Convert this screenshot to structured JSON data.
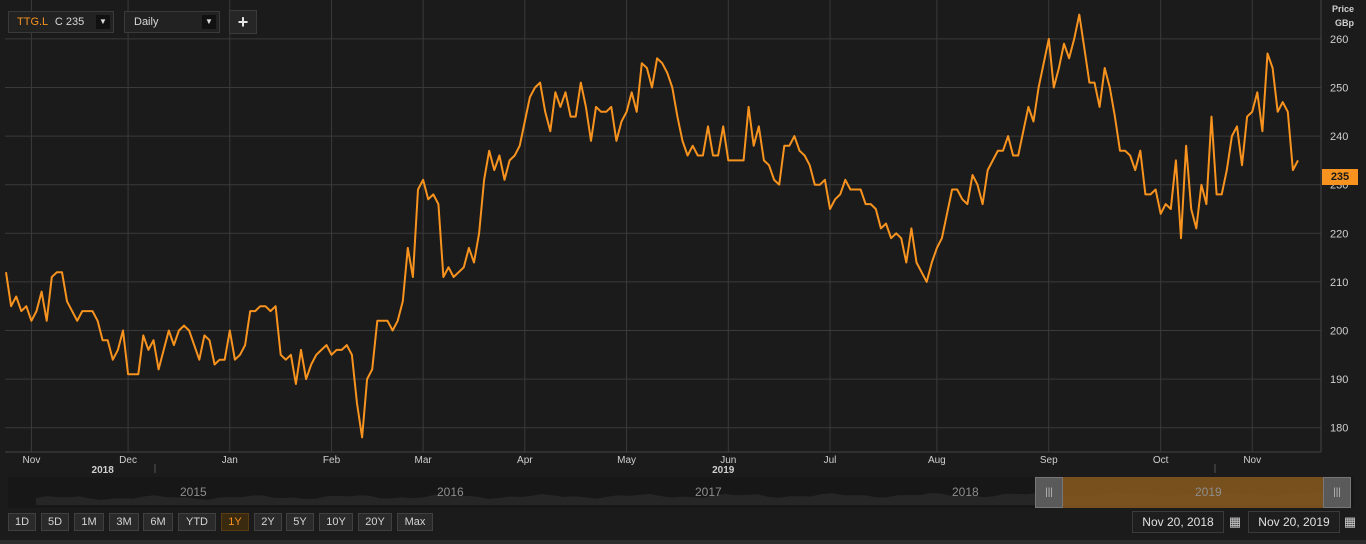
{
  "toolbar": {
    "symbol": "TTG.L",
    "close_value": "C 235",
    "frequency": "Daily",
    "add_symbol": "+"
  },
  "axis": {
    "unit_line1": "Price",
    "unit_line2": "GBp",
    "last_price": "235"
  },
  "navigator": {
    "years": [
      "2015",
      "2016",
      "2017",
      "2018",
      "2019"
    ]
  },
  "range_buttons": [
    "1D",
    "5D",
    "1M",
    "3M",
    "6M",
    "YTD",
    "1Y",
    "2Y",
    "5Y",
    "10Y",
    "20Y",
    "Max"
  ],
  "range_active": "1Y",
  "date_range": {
    "from": "Nov 20, 2018",
    "to": "Nov 20, 2019"
  },
  "colors": {
    "line": "#f7931e",
    "background": "#1b1b1b",
    "grid": "#3a3a3a"
  },
  "icons": {
    "dropdown": "triangle-down",
    "calendar": "calendar"
  },
  "chart_data": {
    "type": "line",
    "series": [
      {
        "values": [
          212,
          205,
          207,
          204,
          205,
          202,
          204,
          208,
          202,
          211,
          212,
          212,
          206,
          204,
          202,
          204,
          204,
          204,
          202,
          198,
          198,
          194,
          196,
          200,
          191,
          191,
          191,
          199,
          196,
          198,
          192,
          196,
          200,
          197,
          200,
          201,
          200,
          197,
          194,
          199,
          198,
          193,
          194,
          194,
          200,
          194,
          195,
          197,
          204,
          204,
          205,
          205,
          204,
          205,
          195,
          194,
          195,
          189,
          196,
          190,
          193,
          195,
          196,
          197,
          195,
          196,
          196,
          197,
          195,
          185,
          178,
          190,
          192,
          202,
          202,
          202,
          200,
          202,
          206,
          217,
          211,
          229,
          231,
          227,
          228,
          226,
          211,
          213,
          211,
          212,
          213,
          217,
          214,
          220,
          231,
          237,
          233,
          236,
          231,
          235,
          236,
          238,
          243,
          248,
          250,
          251,
          245,
          241,
          249,
          246,
          249,
          244,
          244,
          251,
          246,
          239,
          246,
          245,
          245,
          246,
          239,
          243,
          245,
          249,
          245,
          255,
          254,
          250,
          256,
          255,
          253,
          250,
          244,
          239,
          236,
          238,
          236,
          236,
          242,
          236,
          236,
          242,
          235,
          235,
          235,
          235,
          246,
          238,
          242,
          235,
          234,
          231,
          230,
          238,
          238,
          240,
          237,
          236,
          234,
          230,
          230,
          231,
          225,
          227,
          228,
          231,
          229,
          229,
          229,
          226,
          226,
          225,
          221,
          222,
          219,
          220,
          219,
          214,
          221,
          214,
          212,
          210,
          214,
          217,
          219,
          224,
          229,
          229,
          227,
          226,
          232,
          230,
          226,
          233,
          235,
          237,
          237,
          240,
          236,
          236,
          241,
          246,
          243,
          250,
          255,
          260,
          250,
          254,
          259,
          256,
          260,
          265,
          258,
          251,
          251,
          246,
          254,
          250,
          244,
          237,
          237,
          236,
          233,
          237,
          228,
          228,
          229,
          224,
          226,
          225,
          235,
          219,
          238,
          225,
          221,
          230,
          226,
          244,
          228,
          228,
          233,
          240,
          242,
          234,
          244,
          245,
          249,
          241,
          257,
          254,
          245,
          247,
          245,
          233,
          235
        ]
      }
    ],
    "x_tick_labels": [
      "Nov",
      "Dec",
      "Jan",
      "Feb",
      "Mar",
      "Apr",
      "May",
      "Jun",
      "Jul",
      "Aug",
      "Sep",
      "Oct",
      "Nov"
    ],
    "x_tick_indices": [
      5,
      24,
      44,
      64,
      82,
      102,
      122,
      142,
      162,
      183,
      205,
      227,
      245
    ],
    "year_labels": [
      {
        "label": "2018",
        "index": 19
      },
      {
        "label": "2019",
        "index": 141
      }
    ],
    "y_ticks": [
      180,
      190,
      200,
      210,
      220,
      230,
      240,
      250,
      260
    ],
    "ylim": [
      175,
      268
    ],
    "ylabel": "Price GBp",
    "grid": true
  }
}
